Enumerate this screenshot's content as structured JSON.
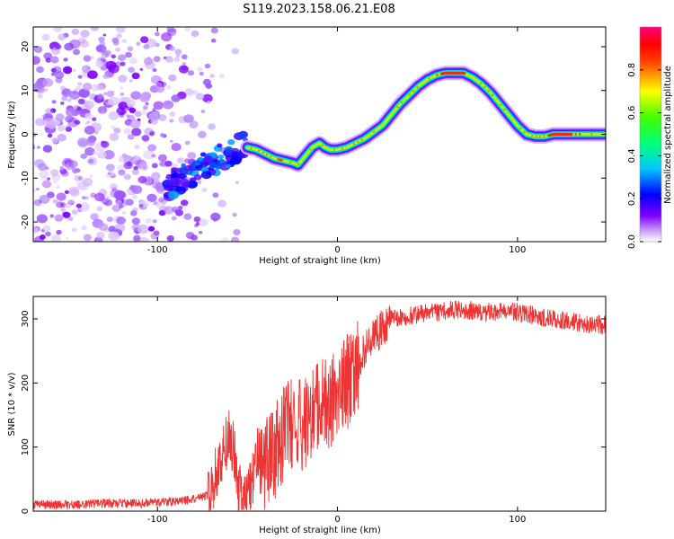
{
  "title": "S119.2023.158.06.21.E08",
  "chart_data": [
    {
      "type": "heatmap",
      "xlabel": "Height of straight line (km)",
      "ylabel": "Frequency (Hz)",
      "xlim": [
        -169,
        149
      ],
      "ylim": [
        -24.5,
        24.5
      ],
      "x_ticks": [
        -100,
        0,
        100
      ],
      "y_ticks": [
        -20,
        -10,
        0,
        10,
        20
      ],
      "colorbar": {
        "label": "Normalized spectral amplitude",
        "ticks": [
          0.0,
          0.2,
          0.4,
          0.6,
          0.8
        ],
        "range": [
          0,
          1
        ],
        "colors": [
          "#ffffff",
          "#7f00ff",
          "#0000ff",
          "#00ffff",
          "#00ff00",
          "#ffff00",
          "#ff0000",
          "#ff0080"
        ]
      },
      "ridge": {
        "height_km": [
          -50,
          -45,
          -40,
          -35,
          -30,
          -25,
          -22,
          -18,
          -14,
          -10,
          -7,
          -4,
          0,
          5,
          10,
          15,
          20,
          25,
          30,
          35,
          40,
          45,
          50,
          55,
          60,
          65,
          70,
          75,
          80,
          85,
          90,
          95,
          100,
          105,
          110,
          115,
          120,
          130,
          140,
          148
        ],
        "frequency_hz": [
          -3,
          -3.5,
          -4.5,
          -5.5,
          -6,
          -6.5,
          -7,
          -5,
          -3,
          -2,
          -3,
          -3.5,
          -3.5,
          -3,
          -2,
          -1,
          0.5,
          2,
          4.5,
          7,
          9,
          11,
          12.5,
          13.5,
          14,
          14,
          14,
          13,
          11.5,
          9.5,
          7,
          4.5,
          2,
          0,
          -0.5,
          -0.5,
          0,
          0,
          0,
          0
        ]
      },
      "noise_region_km": [
        -169,
        -55
      ]
    },
    {
      "type": "line",
      "xlabel": "Height of straight line (km)",
      "ylabel": "SNR (10 * v/v)",
      "xlim": [
        -169,
        149
      ],
      "ylim": [
        0,
        335
      ],
      "x_ticks": [
        -100,
        0,
        100
      ],
      "y_ticks": [
        0,
        100,
        200,
        300
      ],
      "color": "#ee3333",
      "series": [
        {
          "x": [
            -169,
            -150,
            -130,
            -110,
            -90,
            -80,
            -72,
            -67,
            -63,
            -60,
            -57,
            -55,
            -52,
            -48,
            -44,
            -40,
            -35,
            -30,
            -25,
            -20,
            -15,
            -10,
            -5,
            0,
            5,
            10,
            15,
            20,
            25,
            30,
            40,
            50,
            60,
            70,
            80,
            90,
            100,
            110,
            120,
            130,
            140,
            149
          ],
          "y": [
            10,
            10,
            12,
            12,
            15,
            18,
            25,
            60,
            100,
            120,
            90,
            30,
            20,
            40,
            80,
            70,
            90,
            120,
            140,
            130,
            150,
            160,
            170,
            180,
            200,
            220,
            250,
            270,
            285,
            300,
            305,
            310,
            312,
            315,
            310,
            312,
            310,
            305,
            300,
            295,
            292,
            290
          ]
        }
      ]
    }
  ]
}
